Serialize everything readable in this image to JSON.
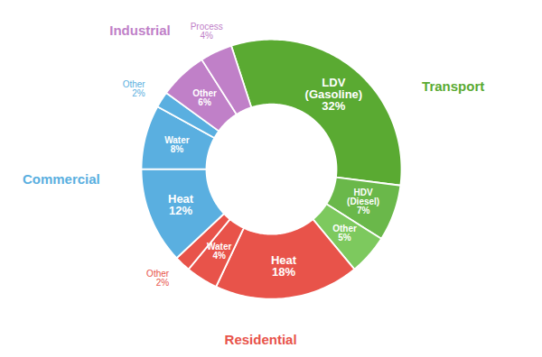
{
  "chart_data": {
    "type": "pie",
    "data_labels": true,
    "series": [
      {
        "name": "Transport",
        "color": "#5aaa32",
        "categories": [
          "LDV\n(Gasoline)",
          "HDV\n(Diesel)",
          "Other"
        ],
        "values": [
          32,
          7,
          5
        ],
        "value_labels": [
          "32%",
          "7%",
          "5%"
        ],
        "colors": [
          "#5aaa32",
          "#6ab84a",
          "#7dc95e"
        ]
      },
      {
        "name": "Residential",
        "color": "#e8534a",
        "categories": [
          "Heat",
          "Water",
          "Other"
        ],
        "values": [
          18,
          4,
          2
        ],
        "value_labels": [
          "18%",
          "4%",
          "2%"
        ]
      },
      {
        "name": "Commercial",
        "color": "#5aafe0",
        "categories": [
          "Heat",
          "Water",
          "Other"
        ],
        "values": [
          12,
          8,
          2
        ],
        "value_labels": [
          "12%",
          "8%",
          "2%"
        ]
      },
      {
        "name": "Industrial",
        "color": "#c080c8",
        "categories": [
          "Other",
          "Process"
        ],
        "values": [
          6,
          4
        ],
        "value_labels": [
          "6%",
          "4%"
        ]
      }
    ]
  }
}
